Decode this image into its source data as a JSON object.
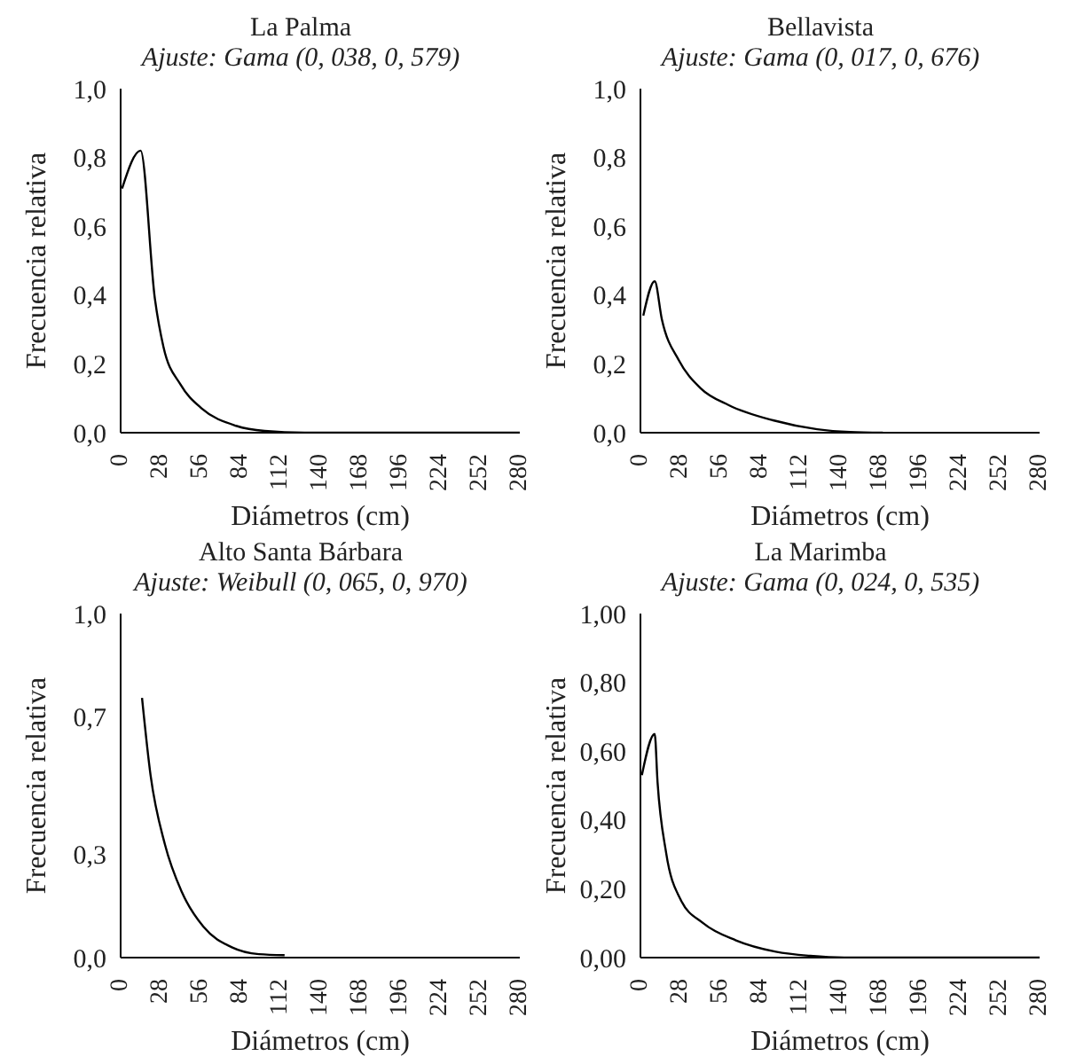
{
  "chart_data": [
    {
      "type": "line",
      "title": "La Palma",
      "subtitle": "Ajuste: Gama (0, 038, 0, 579)",
      "xlabel": "Diámetros (cm)",
      "ylabel": "Frecuencia relativa",
      "xlim": [
        0,
        280
      ],
      "xticks": [
        0,
        28,
        56,
        84,
        112,
        140,
        168,
        196,
        224,
        252,
        280
      ],
      "ylim": [
        0,
        1
      ],
      "yticks": [
        {
          "value": 0,
          "label": "0,0"
        },
        {
          "value": 0.2,
          "label": "0,2"
        },
        {
          "value": 0.4,
          "label": "0,4"
        },
        {
          "value": 0.6,
          "label": "0,6"
        },
        {
          "value": 0.8,
          "label": "0,8"
        },
        {
          "value": 1,
          "label": "1,0"
        }
      ],
      "series": [
        {
          "color": "#000000",
          "x": [
            1,
            14,
            24,
            30,
            42,
            57,
            81,
            101,
            129,
            200,
            280
          ],
          "values": [
            0.71,
            0.82,
            0.39,
            0.25,
            0.14,
            0.07,
            0.02,
            0.005,
            0,
            0,
            0
          ]
        }
      ]
    },
    {
      "type": "line",
      "title": "Bellavista",
      "subtitle": "Ajuste: Gama (0, 017, 0, 676)",
      "xlabel": "Diámetros (cm)",
      "ylabel": "Frecuencia relativa",
      "xlim": [
        0,
        280
      ],
      "xticks": [
        0,
        28,
        56,
        84,
        112,
        140,
        168,
        196,
        224,
        252,
        280
      ],
      "ylim": [
        0,
        1
      ],
      "yticks": [
        {
          "value": 0,
          "label": "0,0"
        },
        {
          "value": 0.2,
          "label": "0,2"
        },
        {
          "value": 0.4,
          "label": "0,4"
        },
        {
          "value": 0.6,
          "label": "0,6"
        },
        {
          "value": 0.8,
          "label": "0,8"
        },
        {
          "value": 1,
          "label": "1,0"
        }
      ],
      "series": [
        {
          "color": "#000000",
          "x": [
            2,
            10,
            15,
            27,
            42,
            62,
            93,
            124,
            147,
            170
          ],
          "values": [
            0.34,
            0.44,
            0.33,
            0.21,
            0.13,
            0.08,
            0.036,
            0.01,
            0.002,
            0
          ]
        }
      ]
    },
    {
      "type": "line",
      "title": "Alto Santa Bárbara",
      "subtitle": "Ajuste: Weibull (0, 065, 0, 970)",
      "xlabel": "Diámetros (cm)",
      "ylabel": "Frecuencia relativa",
      "xlim": [
        0,
        280
      ],
      "xticks": [
        0,
        28,
        56,
        84,
        112,
        140,
        168,
        196,
        224,
        252,
        280
      ],
      "ylim": [
        0,
        1
      ],
      "yticks": [
        {
          "value": 0,
          "label": "0,0"
        },
        {
          "value": 0.3,
          "label": "0,3"
        },
        {
          "value": 0.7,
          "label": "0,7"
        },
        {
          "value": 1,
          "label": "1,0"
        }
      ],
      "series": [
        {
          "color": "#000000",
          "x": [
            15,
            21,
            31,
            43,
            58,
            78,
            97,
            115
          ],
          "values": [
            0.755,
            0.53,
            0.33,
            0.19,
            0.09,
            0.03,
            0.01,
            0.007
          ]
        }
      ]
    },
    {
      "type": "line",
      "title": "La Marimba",
      "subtitle": "Ajuste: Gama (0, 024, 0, 535)",
      "xlabel": "Diámetros (cm)",
      "ylabel": "Frecuencia relativa",
      "xlim": [
        0,
        280
      ],
      "xticks": [
        0,
        28,
        56,
        84,
        112,
        140,
        168,
        196,
        224,
        252,
        280
      ],
      "ylim": [
        0,
        1
      ],
      "yticks": [
        {
          "value": 0,
          "label": "0,00"
        },
        {
          "value": 0.2,
          "label": "0,20"
        },
        {
          "value": 0.4,
          "label": "0,40"
        },
        {
          "value": 0.6,
          "label": "0,60"
        },
        {
          "value": 0.8,
          "label": "0,80"
        },
        {
          "value": 1,
          "label": "1,00"
        }
      ],
      "series": [
        {
          "color": "#000000",
          "x": [
            1,
            10,
            12,
            18,
            28,
            44,
            67,
            95,
            119,
            143,
            280
          ],
          "values": [
            0.53,
            0.65,
            0.51,
            0.305,
            0.17,
            0.1,
            0.05,
            0.017,
            0.005,
            0,
            0
          ]
        }
      ]
    }
  ]
}
